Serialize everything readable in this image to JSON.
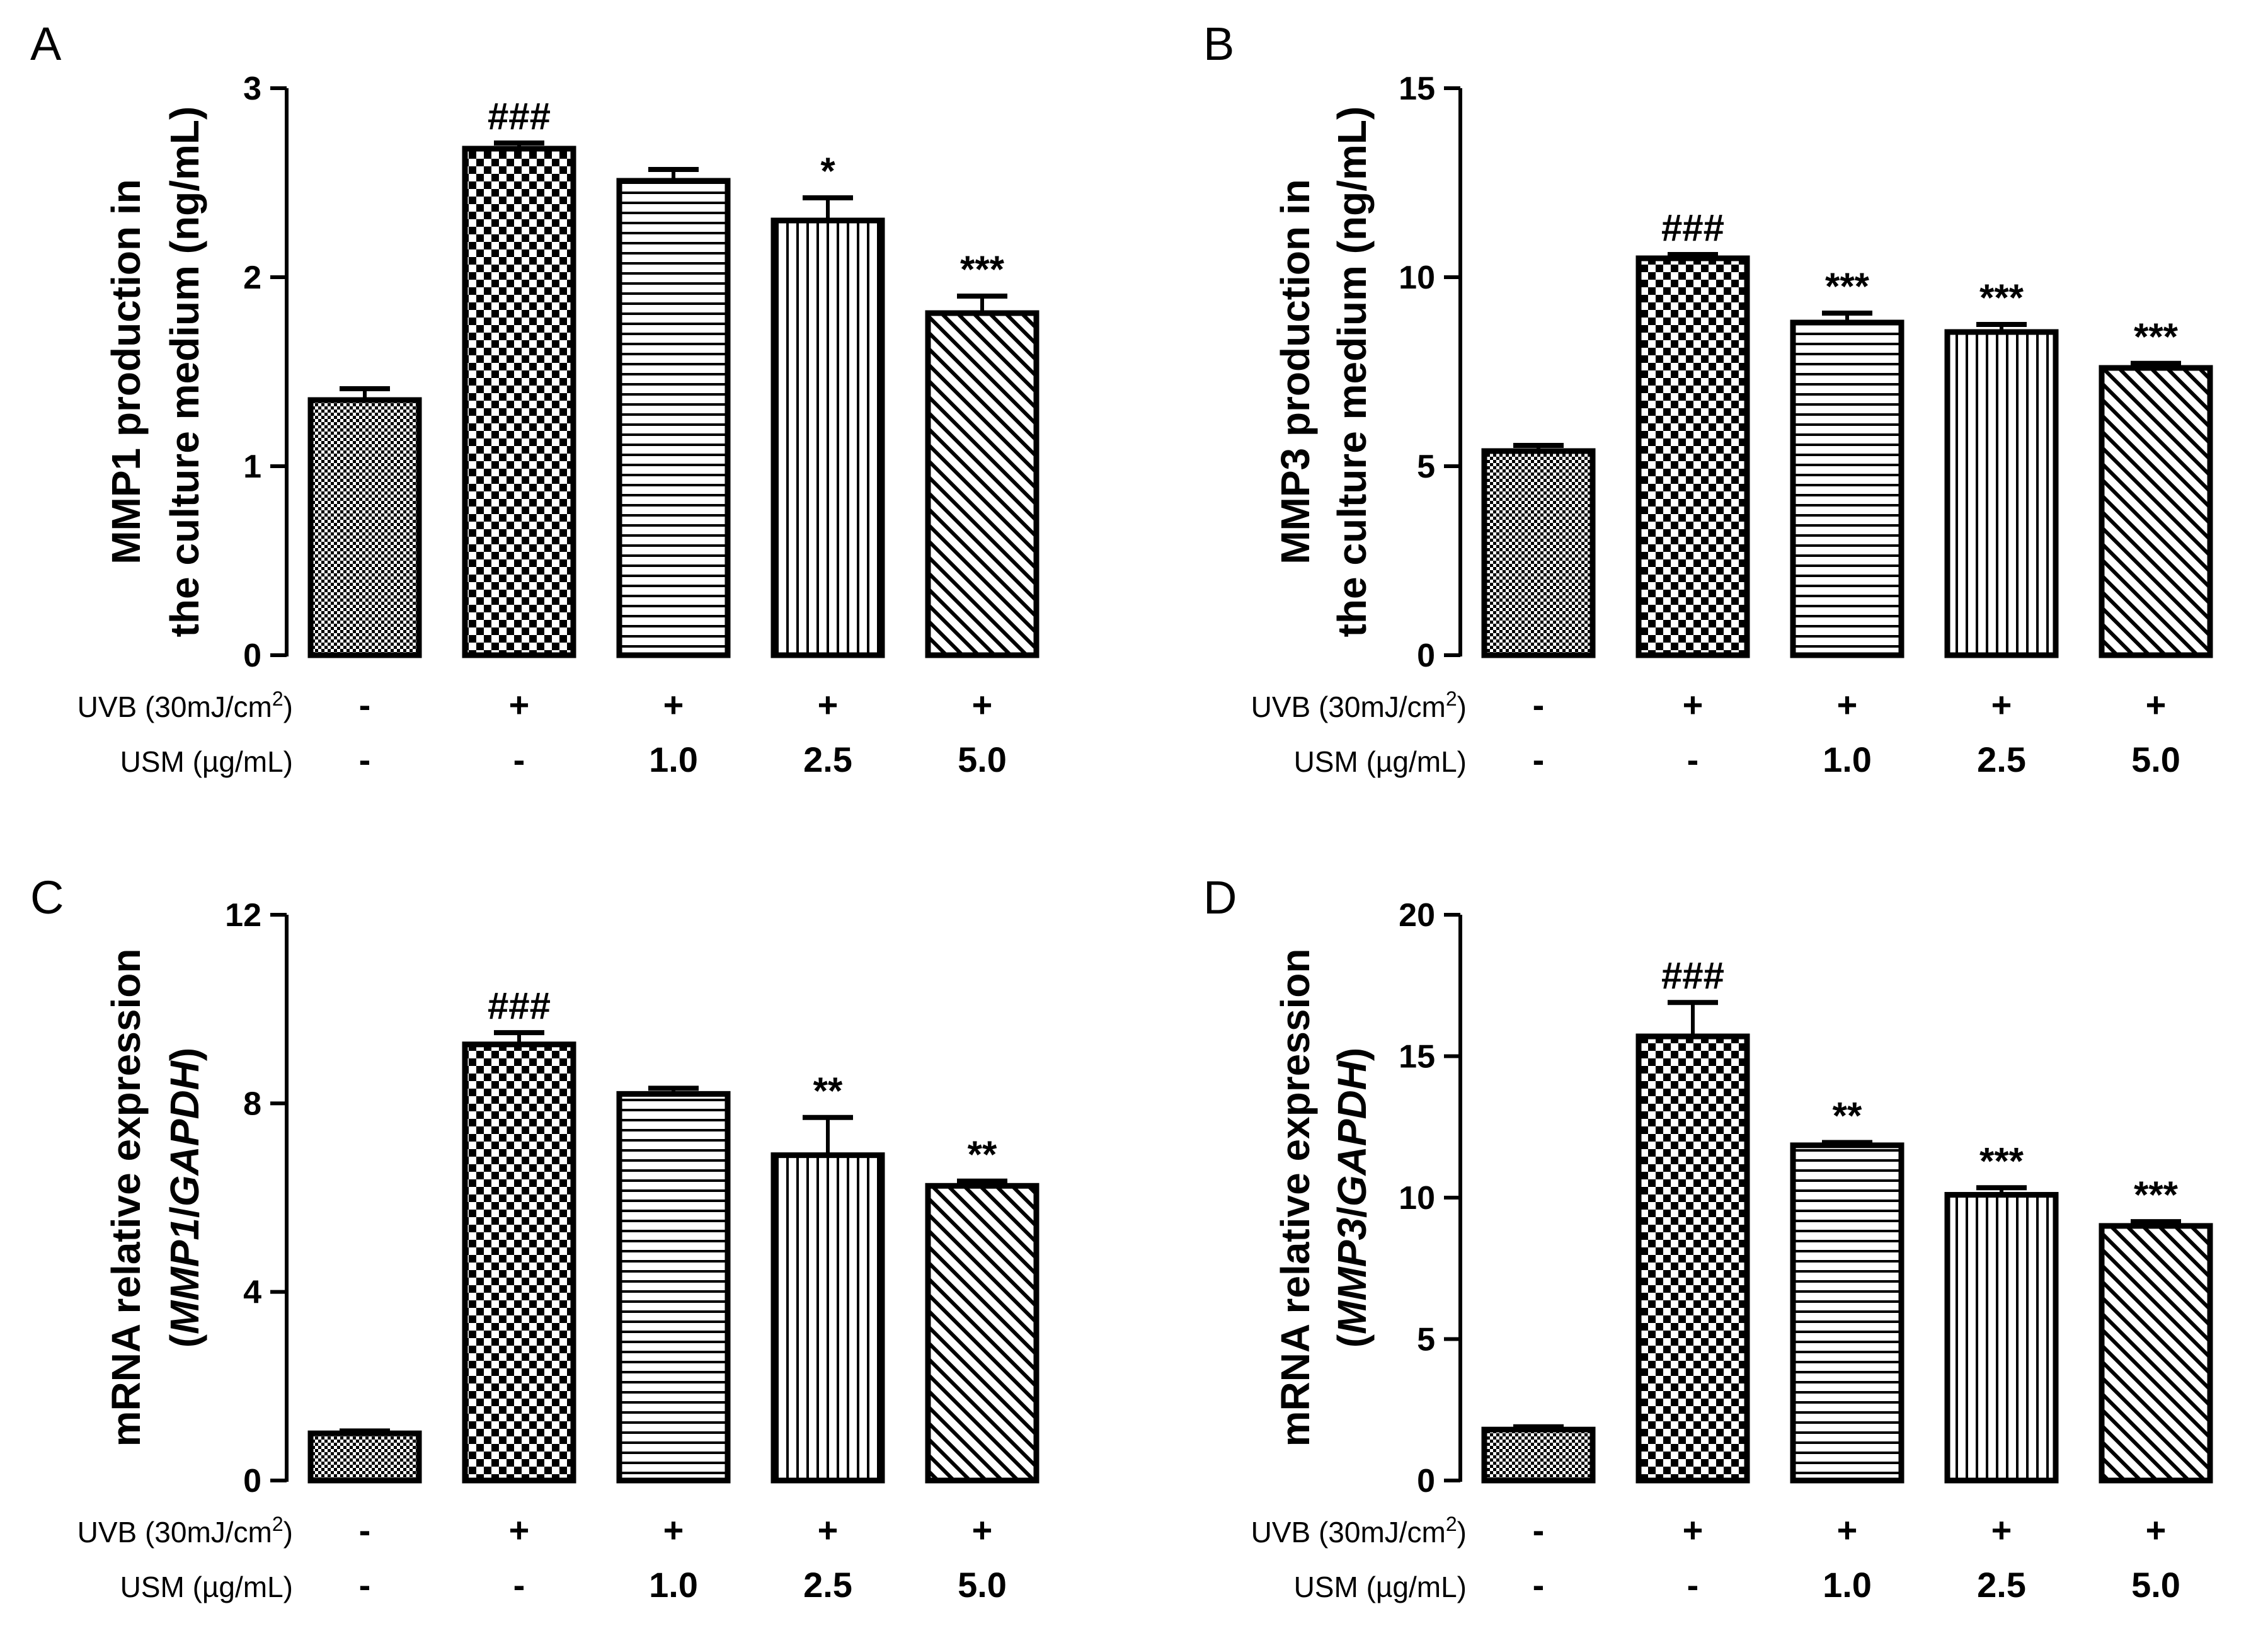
{
  "row_labels": {
    "uvb": [
      "UVB (30mJ/cm",
      "2",
      ")"
    ],
    "usm": [
      "USM (",
      "µ",
      "g/mL)"
    ]
  },
  "colors": {
    "ink": "#000000",
    "fill": "#ffffff"
  },
  "chart_data": [
    {
      "type": "bar",
      "panel": "A",
      "ylabel": "MMP1 production in",
      "ylabel2": "the culture medium (ng/mL)",
      "ylim": [
        0,
        3
      ],
      "yticks": [
        "0",
        "1",
        "2",
        "3"
      ],
      "values": [
        1.35,
        2.68,
        2.51,
        2.3,
        1.81
      ],
      "errors": [
        0.06,
        0.03,
        0.06,
        0.12,
        0.09
      ],
      "annotations": [
        "",
        "###",
        "",
        "*",
        "***"
      ],
      "uvb": [
        "-",
        "+",
        "+",
        "+",
        "+"
      ],
      "usm": [
        "-",
        "-",
        "1.0",
        "2.5",
        "5.0"
      ],
      "patterns": [
        "fine-check",
        "checker",
        "horizontal",
        "vertical",
        "diagonal"
      ]
    },
    {
      "type": "bar",
      "panel": "B",
      "ylabel": "MMP3 production in",
      "ylabel2": "the culture medium (ng/mL)",
      "ylim": [
        0,
        15
      ],
      "yticks": [
        "0",
        "5",
        "10",
        "15"
      ],
      "values": [
        5.4,
        10.5,
        8.8,
        8.55,
        7.6
      ],
      "errors": [
        0.15,
        0.1,
        0.25,
        0.2,
        0.12
      ],
      "annotations": [
        "",
        "###",
        "***",
        "***",
        "***"
      ],
      "uvb": [
        "-",
        "+",
        "+",
        "+",
        "+"
      ],
      "usm": [
        "-",
        "-",
        "1.0",
        "2.5",
        "5.0"
      ],
      "patterns": [
        "fine-check",
        "checker",
        "horizontal",
        "vertical",
        "diagonal"
      ]
    },
    {
      "type": "bar",
      "panel": "C",
      "ylabel": "mRNA relative expression",
      "ylabel2": [
        "(",
        "MMP1",
        "/",
        "GAPDH",
        ")"
      ],
      "ylim": [
        0,
        12
      ],
      "yticks": [
        "0",
        "4",
        "8",
        "12"
      ],
      "values": [
        1.0,
        9.25,
        8.2,
        6.9,
        6.25
      ],
      "errors": [
        0.05,
        0.25,
        0.12,
        0.8,
        0.1
      ],
      "annotations": [
        "",
        "###",
        "",
        "**",
        "**"
      ],
      "uvb": [
        "-",
        "+",
        "+",
        "+",
        "+"
      ],
      "usm": [
        "-",
        "-",
        "1.0",
        "2.5",
        "5.0"
      ],
      "patterns": [
        "fine-check",
        "checker",
        "horizontal",
        "vertical",
        "diagonal"
      ]
    },
    {
      "type": "bar",
      "panel": "D",
      "ylabel": "mRNA relative expression",
      "ylabel2": [
        "(",
        "MMP3",
        "/",
        "GAPDH",
        ")"
      ],
      "ylim": [
        0,
        20
      ],
      "yticks": [
        "0",
        "5",
        "10",
        "15",
        "20"
      ],
      "values": [
        1.8,
        15.7,
        11.85,
        10.1,
        9.0
      ],
      "errors": [
        0.1,
        1.2,
        0.1,
        0.25,
        0.15
      ],
      "annotations": [
        "",
        "###",
        "**",
        "***",
        "***"
      ],
      "uvb": [
        "-",
        "+",
        "+",
        "+",
        "+"
      ],
      "usm": [
        "-",
        "-",
        "1.0",
        "2.5",
        "5.0"
      ],
      "patterns": [
        "fine-check",
        "checker",
        "horizontal",
        "vertical",
        "diagonal"
      ]
    }
  ]
}
